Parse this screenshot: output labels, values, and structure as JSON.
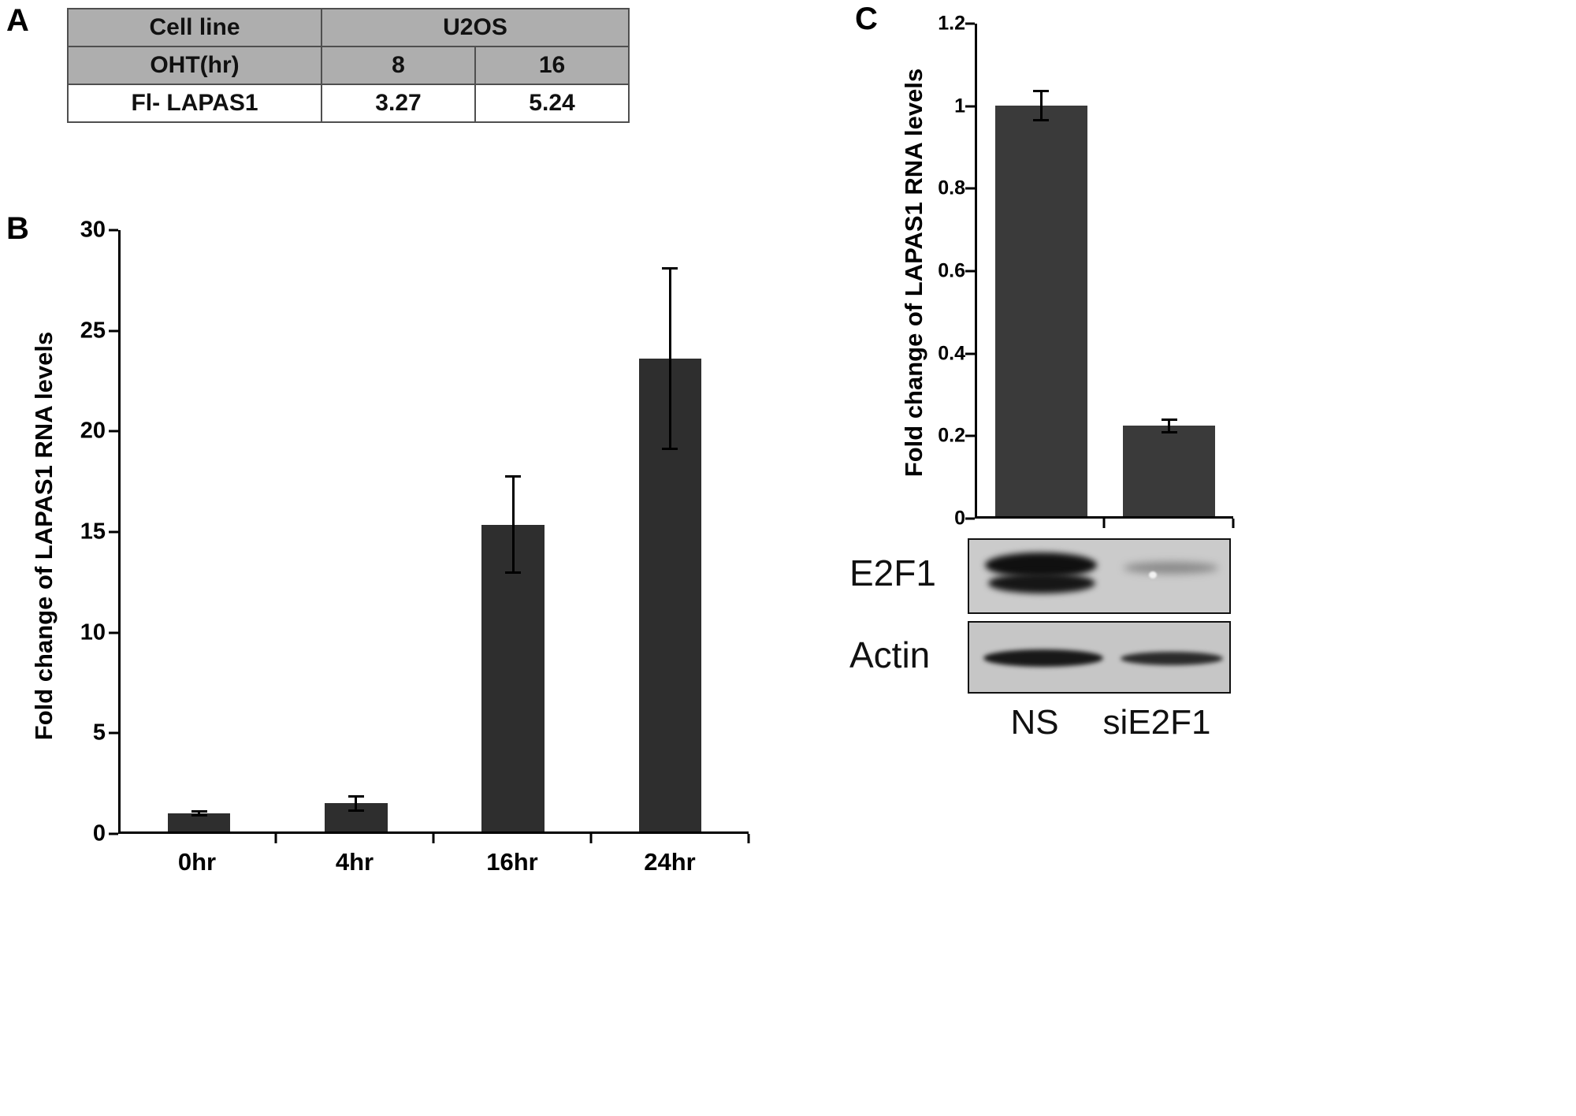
{
  "panels": {
    "a": {
      "label": "A",
      "table": {
        "row1": [
          "Cell line",
          "U2OS"
        ],
        "row2": [
          "OHT(hr)",
          "8",
          "16"
        ],
        "row3": [
          "Fl- LAPAS1",
          "3.27",
          "5.24"
        ]
      }
    },
    "b": {
      "label": "B"
    },
    "c": {
      "label": "C",
      "blots": [
        {
          "label": "E2F1",
          "bands": [
            "strong",
            "faint"
          ]
        },
        {
          "label": "Actin",
          "bands": [
            "present",
            "present"
          ]
        }
      ],
      "lane_labels": [
        "NS",
        "siE2F1"
      ]
    }
  },
  "colors": {
    "bar": "#2e2e2e",
    "table_header_bg": "#aeaeae"
  },
  "chart_data": [
    {
      "id": "chart-b",
      "type": "bar",
      "title": "",
      "categories": [
        "0hr",
        "4hr",
        "16hr",
        "24hr"
      ],
      "values": [
        0.9,
        1.4,
        15.3,
        23.6
      ],
      "errors": [
        0.1,
        0.35,
        2.4,
        4.5
      ],
      "xlabel": "",
      "ylabel": "Fold change of LAPAS1 RNA levels",
      "ylim": [
        0,
        30
      ],
      "yticks": [
        0,
        5,
        10,
        15,
        20,
        25,
        30
      ],
      "grid": false,
      "legend": "none",
      "bar_color": "#2e2e2e",
      "bar_width_pct": 10,
      "show_x_labels": true
    },
    {
      "id": "chart-c",
      "type": "bar",
      "title": "",
      "categories": [
        "NS",
        "siE2F1"
      ],
      "values": [
        1.0,
        0.22
      ],
      "errors": [
        0.035,
        0.015
      ],
      "xlabel": "",
      "ylabel": "Fold change of LAPAS1 RNA levels",
      "ylim": [
        0,
        1.2
      ],
      "yticks": [
        0,
        0.2,
        0.4,
        0.6,
        0.8,
        1,
        1.2
      ],
      "grid": false,
      "legend": "none",
      "bar_color": "#3a3a3a",
      "bar_width_pct": 36,
      "show_x_labels": false
    }
  ]
}
